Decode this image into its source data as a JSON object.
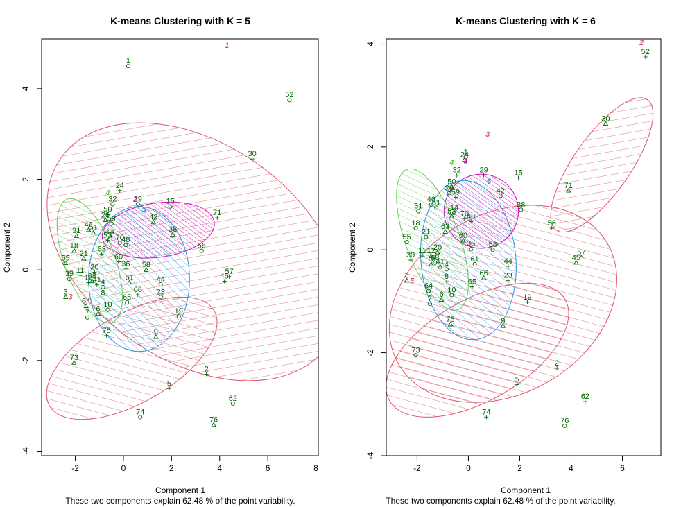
{
  "colors": {
    "pink": "#DF536B",
    "green": "#61D04F",
    "blue": "#2297E6",
    "magenta": "#CD0BBC",
    "points": "#006400"
  },
  "chart_data": [
    {
      "type": "scatter",
      "title": "K-means Clustering with K = 5",
      "xlabel": "Component 1",
      "ylabel": "Component 2",
      "sub": "These two components explain 62.48 % of the point variability.",
      "xlim": [
        -3.4,
        8.1
      ],
      "ylim": [
        -4.1,
        5.1
      ],
      "xticks": [
        "-2",
        "0",
        "2",
        "4",
        "6",
        "8"
      ],
      "yticks": [
        "-4",
        "-2",
        "0",
        "2",
        "4"
      ],
      "grid": false,
      "points": [
        {
          "label": "1",
          "x": 0.2,
          "y": 4.5
        },
        {
          "label": "2",
          "x": 3.45,
          "y": -2.3
        },
        {
          "label": "3",
          "x": -2.4,
          "y": -0.6
        },
        {
          "label": "4",
          "x": -0.85,
          "y": -0.38
        },
        {
          "label": "5",
          "x": 1.9,
          "y": -2.62
        },
        {
          "label": "6",
          "x": -1.05,
          "y": -0.97
        },
        {
          "label": "7",
          "x": -1.5,
          "y": -1.05
        },
        {
          "label": "8",
          "x": -0.85,
          "y": -0.62
        },
        {
          "label": "9",
          "x": 1.35,
          "y": -1.48
        },
        {
          "label": "10",
          "x": -0.65,
          "y": -0.88
        },
        {
          "label": "11",
          "x": -1.8,
          "y": -0.12
        },
        {
          "label": "14",
          "x": -0.55,
          "y": 0.72
        },
        {
          "label": "15",
          "x": 1.95,
          "y": 1.4
        },
        {
          "label": "16",
          "x": -1.45,
          "y": -0.28
        },
        {
          "label": "18",
          "x": -2.05,
          "y": 0.42
        },
        {
          "label": "19",
          "x": 2.3,
          "y": -1.02
        },
        {
          "label": "20",
          "x": -1.2,
          "y": -0.05
        },
        {
          "label": "21",
          "x": -1.65,
          "y": 0.25
        },
        {
          "label": "23",
          "x": 1.55,
          "y": -0.6
        },
        {
          "label": "24",
          "x": -0.15,
          "y": 1.75
        },
        {
          "label": "26",
          "x": -0.75,
          "y": 1.1
        },
        {
          "label": "29",
          "x": 0.6,
          "y": 1.45
        },
        {
          "label": "30",
          "x": 5.35,
          "y": 2.45
        },
        {
          "label": "31",
          "x": -1.95,
          "y": 0.75
        },
        {
          "label": "32",
          "x": -0.45,
          "y": 1.45
        },
        {
          "label": "36",
          "x": 0.1,
          "y": 0.02
        },
        {
          "label": "38",
          "x": 2.05,
          "y": 0.78
        },
        {
          "label": "39",
          "x": -2.25,
          "y": -0.2
        },
        {
          "label": "41",
          "x": -1.1,
          "y": -0.33
        },
        {
          "label": "42",
          "x": 1.25,
          "y": 1.05
        },
        {
          "label": "44",
          "x": 1.55,
          "y": -0.32
        },
        {
          "label": "45",
          "x": 4.2,
          "y": -0.25
        },
        {
          "label": "46",
          "x": -1.45,
          "y": 0.88
        },
        {
          "label": "48",
          "x": 0.1,
          "y": 0.55
        },
        {
          "label": "50",
          "x": -0.65,
          "y": 1.22
        },
        {
          "label": "51",
          "x": -1.25,
          "y": 0.82
        },
        {
          "label": "52",
          "x": 6.9,
          "y": 3.75
        },
        {
          "label": "53",
          "x": -0.65,
          "y": 0.65
        },
        {
          "label": "55",
          "x": -2.4,
          "y": 0.15
        },
        {
          "label": "56",
          "x": 3.25,
          "y": 0.42
        },
        {
          "label": "57",
          "x": 4.4,
          "y": -0.15
        },
        {
          "label": "58",
          "x": 0.95,
          "y": 0.0
        },
        {
          "label": "59",
          "x": -0.5,
          "y": 1.02
        },
        {
          "label": "60",
          "x": -0.2,
          "y": 0.18
        },
        {
          "label": "61",
          "x": 0.25,
          "y": -0.28
        },
        {
          "label": "62",
          "x": 4.55,
          "y": -2.95
        },
        {
          "label": "63",
          "x": -0.9,
          "y": 0.35
        },
        {
          "label": "64",
          "x": -1.55,
          "y": -0.8
        },
        {
          "label": "65",
          "x": 0.15,
          "y": -0.72
        },
        {
          "label": "66",
          "x": 0.6,
          "y": -0.55
        },
        {
          "label": "68",
          "x": -1.3,
          "y": -0.25
        },
        {
          "label": "70",
          "x": -0.15,
          "y": 0.6
        },
        {
          "label": "71",
          "x": 3.9,
          "y": 1.15
        },
        {
          "label": "73",
          "x": -2.05,
          "y": -2.05
        },
        {
          "label": "74",
          "x": 0.7,
          "y": -3.25
        },
        {
          "label": "75",
          "x": -0.7,
          "y": -1.45
        },
        {
          "label": "76",
          "x": 3.75,
          "y": -3.42
        }
      ],
      "clusters": [
        {
          "id": "1",
          "color": "pink",
          "cx": 2.95,
          "cy": 0.4,
          "rx": 4.5,
          "ry": 3.6,
          "angle": -55,
          "hatch": true,
          "lx": 4.3,
          "ly": 4.9
        },
        {
          "id": "2",
          "color": "magenta",
          "cx": 1.45,
          "cy": 0.88,
          "rx": 2.35,
          "ry": 0.6,
          "angle": -8,
          "hatch": true,
          "lx": 0.5,
          "ly": 1.5
        },
        {
          "id": "3",
          "color": "pink",
          "cx": 0.35,
          "cy": -1.95,
          "rx": 3.95,
          "ry": 0.98,
          "angle": -30,
          "hatch": true,
          "lx": -2.2,
          "ly": -0.65
        },
        {
          "id": "4",
          "color": "green",
          "cx": -1.4,
          "cy": 0.2,
          "rx": 1.05,
          "ry": 1.45,
          "angle": -20,
          "hatch": true,
          "lx": -0.65,
          "ly": 1.65
        },
        {
          "id": "5",
          "color": "blue",
          "cx": 0.65,
          "cy": -0.2,
          "rx": 2.1,
          "ry": 1.6,
          "angle": 0,
          "hatch": true,
          "lx": 0.85,
          "ly": 1.28
        }
      ]
    },
    {
      "type": "scatter",
      "title": "K-means Clustering with K = 6",
      "xlabel": "Component 1",
      "ylabel": "Component 2",
      "sub": "These two components explain 62.48 % of the point variability.",
      "xlim": [
        -3.2,
        7.5
      ],
      "ylim": [
        -4.0,
        4.1
      ],
      "xticks": [
        "-2",
        "0",
        "2",
        "4",
        "6"
      ],
      "yticks": [
        "-4",
        "-2",
        "0",
        "2",
        "4"
      ],
      "grid": false,
      "points": [
        {
          "label": "1",
          "x": -0.1,
          "y": 1.8
        },
        {
          "label": "2",
          "x": 3.45,
          "y": -2.3
        },
        {
          "label": "3",
          "x": -2.4,
          "y": -0.6
        },
        {
          "label": "4",
          "x": -0.85,
          "y": -0.38
        },
        {
          "label": "5",
          "x": 1.9,
          "y": -2.62
        },
        {
          "label": "6",
          "x": -1.05,
          "y": -0.97
        },
        {
          "label": "7",
          "x": -1.5,
          "y": -1.05
        },
        {
          "label": "8",
          "x": -0.85,
          "y": -0.62
        },
        {
          "label": "9",
          "x": 1.35,
          "y": -1.48
        },
        {
          "label": "10",
          "x": -0.65,
          "y": -0.88
        },
        {
          "label": "11",
          "x": -1.8,
          "y": -0.12
        },
        {
          "label": "12",
          "x": -1.45,
          "y": -0.12
        },
        {
          "label": "14",
          "x": -0.55,
          "y": 0.72
        },
        {
          "label": "15",
          "x": 1.95,
          "y": 1.4
        },
        {
          "label": "16",
          "x": -1.45,
          "y": -0.28
        },
        {
          "label": "18",
          "x": -2.05,
          "y": 0.42
        },
        {
          "label": "19",
          "x": 2.3,
          "y": -1.02
        },
        {
          "label": "20",
          "x": -1.2,
          "y": -0.05
        },
        {
          "label": "21",
          "x": -1.65,
          "y": 0.25
        },
        {
          "label": "23",
          "x": 1.55,
          "y": -0.6
        },
        {
          "label": "24",
          "x": -0.15,
          "y": 1.75
        },
        {
          "label": "26",
          "x": -0.75,
          "y": 1.1
        },
        {
          "label": "29",
          "x": 0.6,
          "y": 1.45
        },
        {
          "label": "30",
          "x": 5.35,
          "y": 2.45
        },
        {
          "label": "31",
          "x": -1.95,
          "y": 0.75
        },
        {
          "label": "32",
          "x": -0.45,
          "y": 1.45
        },
        {
          "label": "36",
          "x": 0.1,
          "y": 0.02
        },
        {
          "label": "38",
          "x": 2.05,
          "y": 0.78
        },
        {
          "label": "39",
          "x": -2.25,
          "y": -0.2
        },
        {
          "label": "41",
          "x": -1.1,
          "y": -0.33
        },
        {
          "label": "42",
          "x": 1.25,
          "y": 1.05
        },
        {
          "label": "44",
          "x": 1.55,
          "y": -0.32
        },
        {
          "label": "45",
          "x": 4.2,
          "y": -0.25
        },
        {
          "label": "46",
          "x": -1.45,
          "y": 0.88
        },
        {
          "label": "48",
          "x": 0.1,
          "y": 0.55
        },
        {
          "label": "50",
          "x": -0.65,
          "y": 1.22
        },
        {
          "label": "51",
          "x": -1.25,
          "y": 0.82
        },
        {
          "label": "52",
          "x": 6.9,
          "y": 3.75
        },
        {
          "label": "53",
          "x": -0.65,
          "y": 0.65
        },
        {
          "label": "55",
          "x": -2.4,
          "y": 0.15
        },
        {
          "label": "56",
          "x": 3.25,
          "y": 0.42
        },
        {
          "label": "57",
          "x": 4.4,
          "y": -0.15
        },
        {
          "label": "58",
          "x": 0.95,
          "y": 0.0
        },
        {
          "label": "59",
          "x": -0.5,
          "y": 1.02
        },
        {
          "label": "60",
          "x": -0.2,
          "y": 0.18
        },
        {
          "label": "61",
          "x": 0.25,
          "y": -0.28
        },
        {
          "label": "62",
          "x": 4.55,
          "y": -2.95
        },
        {
          "label": "63",
          "x": -0.9,
          "y": 0.35
        },
        {
          "label": "64",
          "x": -1.55,
          "y": -0.8
        },
        {
          "label": "65",
          "x": 0.15,
          "y": -0.72
        },
        {
          "label": "66",
          "x": 0.6,
          "y": -0.55
        },
        {
          "label": "68",
          "x": -1.3,
          "y": -0.25
        },
        {
          "label": "70",
          "x": -0.15,
          "y": 0.6
        },
        {
          "label": "71",
          "x": 3.9,
          "y": 1.15
        },
        {
          "label": "73",
          "x": -2.05,
          "y": -2.05
        },
        {
          "label": "74",
          "x": 0.7,
          "y": -3.25
        },
        {
          "label": "75",
          "x": -0.7,
          "y": -1.45
        },
        {
          "label": "76",
          "x": 3.75,
          "y": -3.42
        }
      ],
      "clusters": [
        {
          "id": "1",
          "color": "magenta",
          "cx": 0.5,
          "cy": 0.75,
          "rx": 1.45,
          "ry": 0.72,
          "angle": -10,
          "hatch": true,
          "lx": -0.1,
          "ly": 1.68
        },
        {
          "id": "2",
          "color": "pink",
          "cx": 5.2,
          "cy": 1.65,
          "rx": 3.1,
          "ry": 0.55,
          "angle": -55,
          "hatch": true,
          "lx": 6.75,
          "ly": 3.98
        },
        {
          "id": "3",
          "color": "pink",
          "cx": 1.35,
          "cy": -1.05,
          "rx": 4.7,
          "ry": 1.75,
          "angle": -30,
          "hatch": true,
          "lx": 0.75,
          "ly": 2.2
        },
        {
          "id": "4",
          "color": "green",
          "cx": -1.4,
          "cy": 0.2,
          "rx": 1.05,
          "ry": 1.45,
          "angle": -20,
          "hatch": true,
          "lx": -0.65,
          "ly": 1.65
        },
        {
          "id": "5",
          "color": "pink",
          "cx": 0.35,
          "cy": -1.95,
          "rx": 3.95,
          "ry": 0.98,
          "angle": -30,
          "hatch": true,
          "lx": -2.2,
          "ly": -0.65
        },
        {
          "id": "6",
          "color": "blue",
          "cx": 0.0,
          "cy": -0.2,
          "rx": 1.85,
          "ry": 1.55,
          "angle": -5,
          "hatch": true,
          "lx": 0.8,
          "ly": 1.28
        }
      ]
    }
  ]
}
